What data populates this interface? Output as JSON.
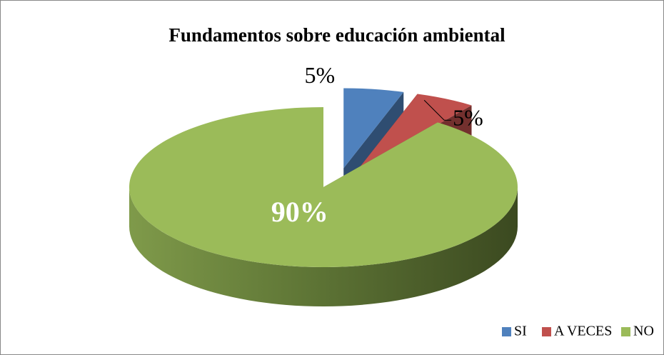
{
  "chart_data": {
    "type": "pie",
    "title": "Fundamentos sobre educación ambiental",
    "categories": [
      "SI",
      "A VECES",
      "NO"
    ],
    "values": [
      5,
      5,
      90
    ],
    "value_labels": [
      "5%",
      "5%",
      "90%"
    ],
    "colors": [
      "#4f81bd",
      "#c0504d",
      "#9bbb59"
    ],
    "legend": "bottom-right"
  }
}
